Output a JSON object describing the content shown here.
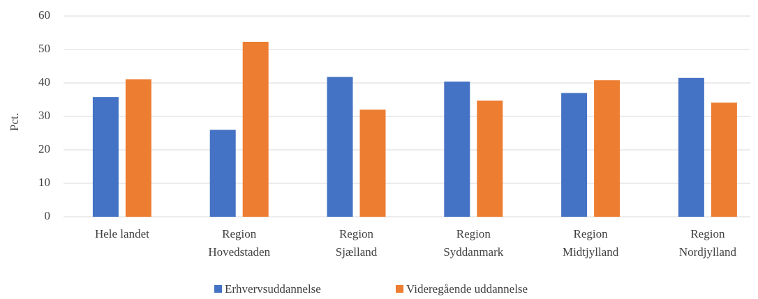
{
  "chart_data": {
    "type": "bar",
    "y_label": "Pct.",
    "categories": [
      [
        "Hele landet"
      ],
      [
        "Region",
        "Hovedstaden"
      ],
      [
        "Region",
        "Sjælland"
      ],
      [
        "Region",
        "Syddanmark"
      ],
      [
        "Region",
        "Midtjylland"
      ],
      [
        "Region",
        "Nordjylland"
      ]
    ],
    "series": [
      {
        "name": "Erhvervsuddannelse",
        "color": "#4472c4",
        "values": [
          35.8,
          26,
          41.8,
          40.4,
          37,
          41.5
        ]
      },
      {
        "name": "Videregående uddannelse",
        "color": "#ed7d31",
        "values": [
          41.1,
          52.3,
          32,
          34.7,
          40.8,
          34.1
        ]
      }
    ],
    "ylim": [
      0,
      60
    ],
    "yticks": [
      0,
      10,
      20,
      30,
      40,
      50,
      60
    ],
    "grid": true,
    "legend": "bottom"
  }
}
